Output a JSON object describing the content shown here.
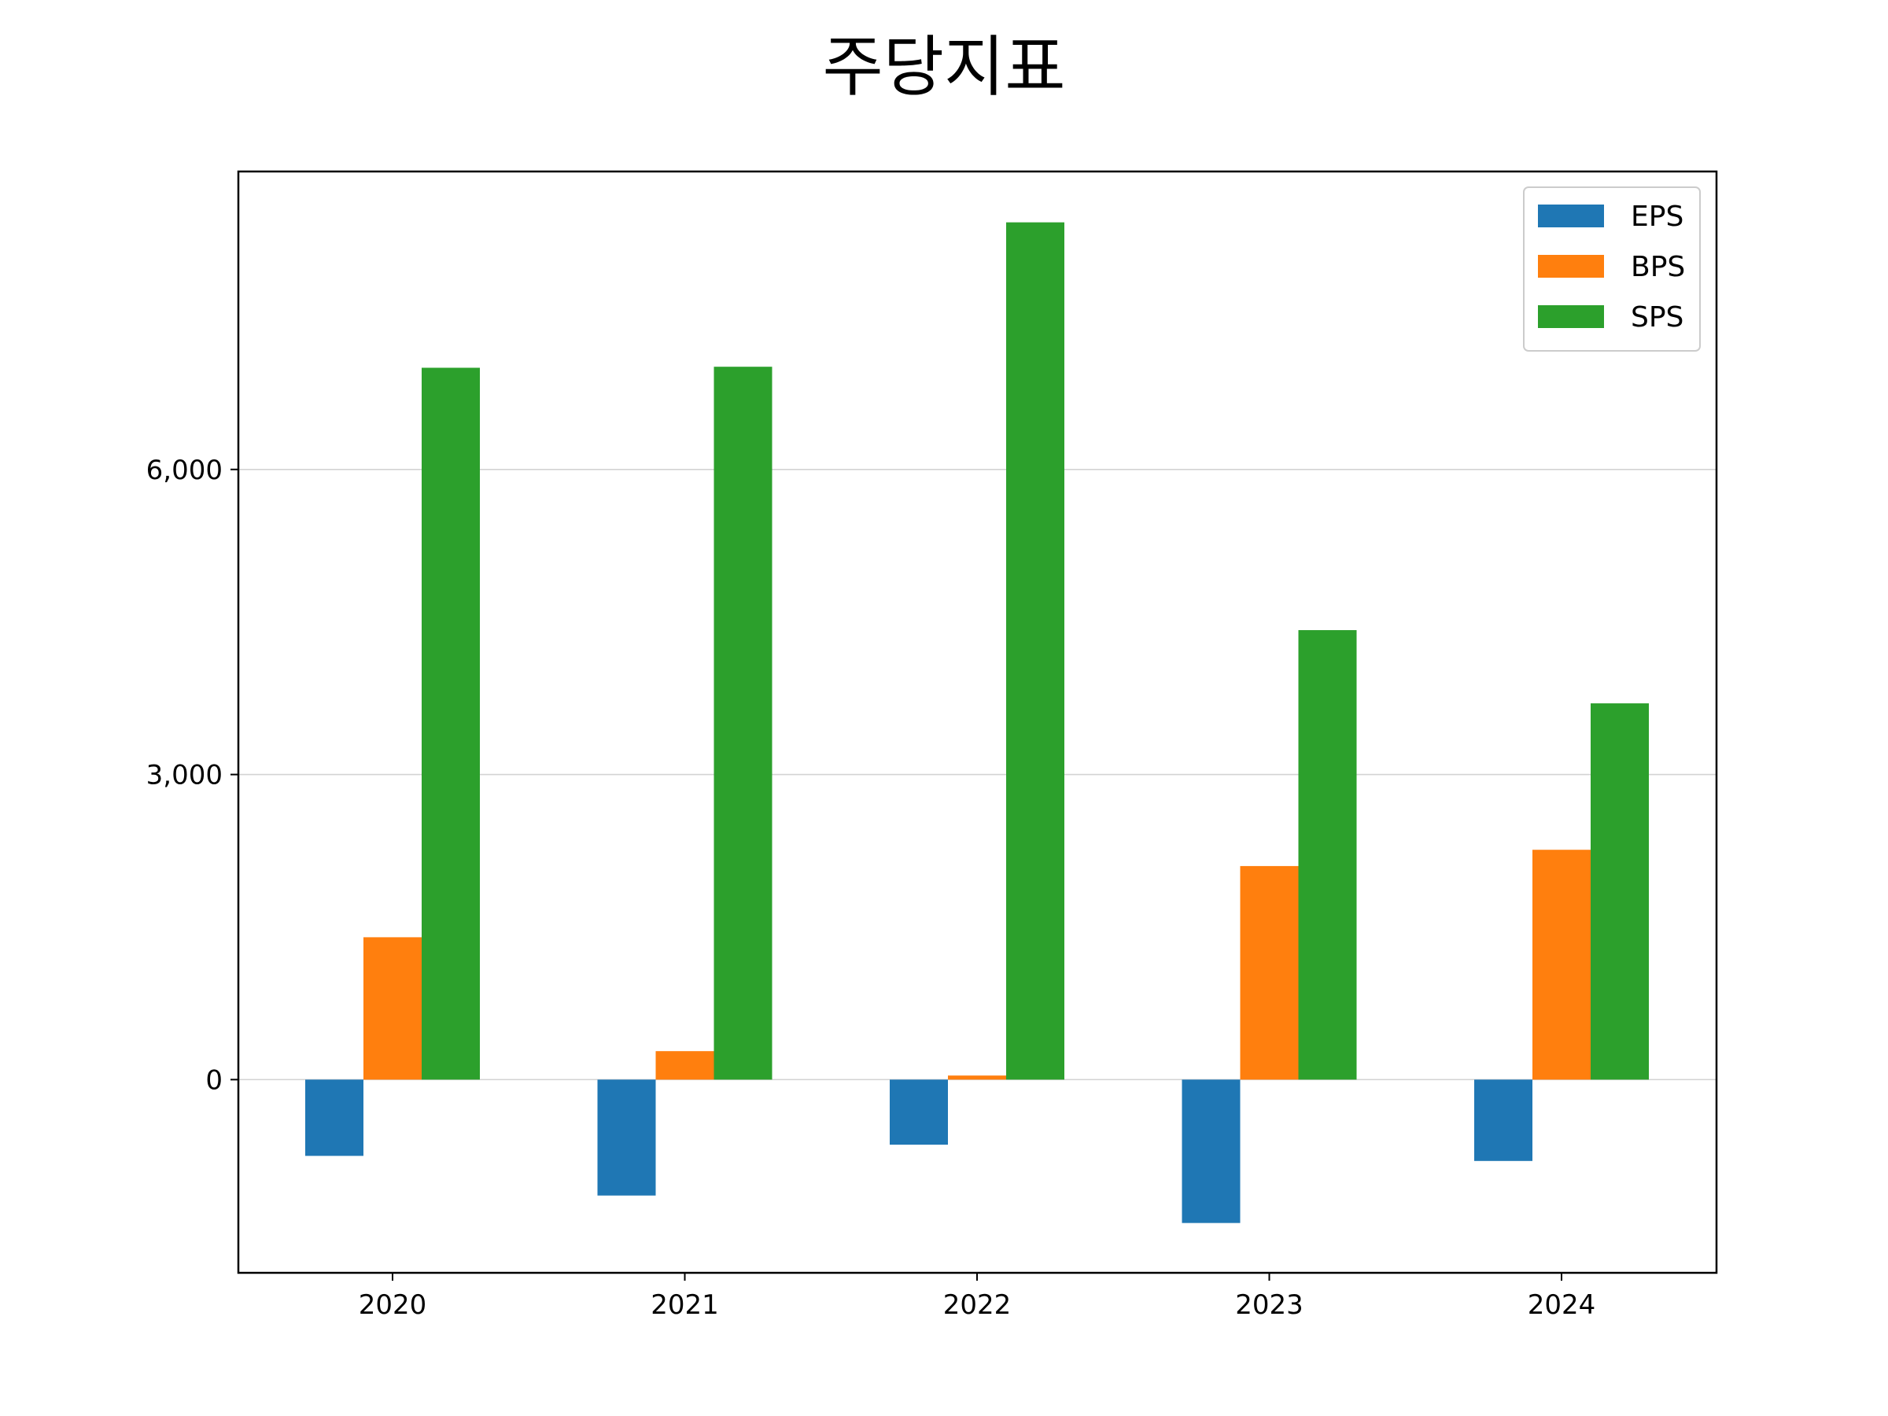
{
  "chart_data": {
    "type": "bar",
    "title": "주당지표",
    "xlabel": "",
    "ylabel": "",
    "categories": [
      "2020",
      "2021",
      "2022",
      "2023",
      "2024"
    ],
    "series": [
      {
        "name": "EPS",
        "color": "#1f77b4",
        "values": [
          -750,
          -1140,
          -640,
          -1410,
          -800
        ]
      },
      {
        "name": "BPS",
        "color": "#ff7f0e",
        "values": [
          1400,
          280,
          40,
          2100,
          2260
        ]
      },
      {
        "name": "SPS",
        "color": "#2ca02c",
        "values": [
          7000,
          7010,
          8430,
          4420,
          3700
        ]
      }
    ],
    "ylim": [
      -1900,
      8930
    ],
    "yticks": [
      0,
      3000,
      6000
    ],
    "ytick_labels": [
      "0",
      "3,000",
      "6,000"
    ],
    "grid": "horizontal",
    "legend_position": "top-right"
  }
}
